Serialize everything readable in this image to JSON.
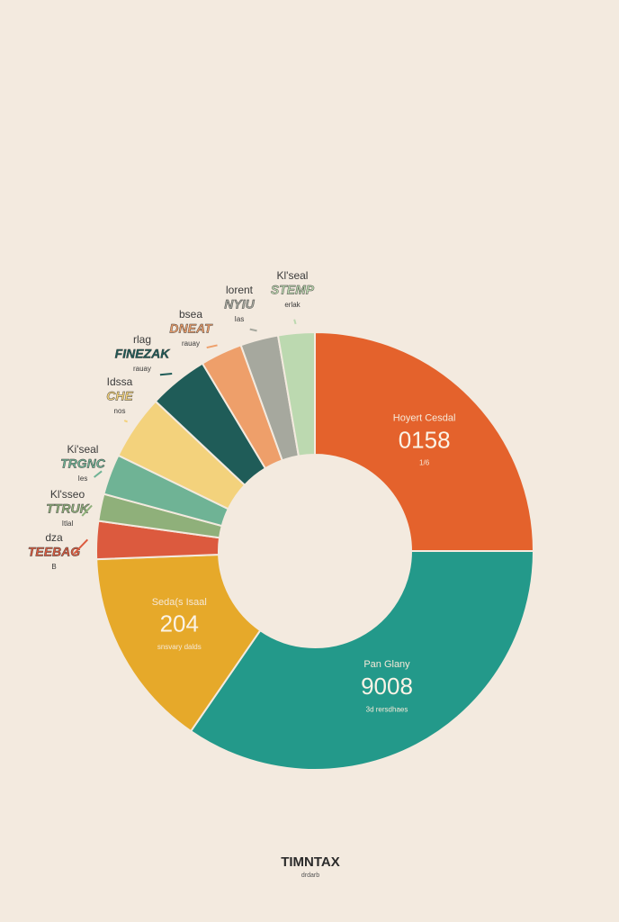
{
  "chart_data": {
    "type": "donut",
    "values": [
      25,
      34.6,
      14.8,
      2.8,
      2,
      3,
      4.8,
      4.4,
      3.1,
      2.8,
      2.7
    ],
    "colors": [
      "#e4622c",
      "#23998a",
      "#e6a92a",
      "#dc5a3e",
      "#8fb07a",
      "#6fb395",
      "#f3d27c",
      "#1f5c58",
      "#ee9f6a",
      "#a6a89e",
      "#bcd9b0"
    ],
    "slice_labels": [
      [
        "Hoyert Cesdal",
        "0158",
        "1/6"
      ],
      [
        "Pan Glany",
        "9008",
        "3d rersdhaes"
      ],
      [
        "Seda(s Isaal",
        "204",
        "snsvary dalds"
      ],
      [
        "dza",
        "TEEBAG",
        "B"
      ],
      [
        "Kl'sseo",
        "TTRUK",
        "Itlal"
      ],
      [
        "Ki'seal",
        "TRGNC",
        "Ies"
      ],
      [
        "Idssa",
        "CHE",
        "nos"
      ],
      [
        "rlag",
        "FINEZAK",
        "rauay"
      ],
      [
        "bsea",
        "DNEAT",
        "rauay"
      ],
      [
        "lorent",
        "NYIU",
        "Ias"
      ],
      [
        "Kl'seal",
        "STEMP",
        "erlak"
      ]
    ]
  },
  "footer": {
    "title": "TIMNTAX",
    "subtitle": "drdarb"
  }
}
